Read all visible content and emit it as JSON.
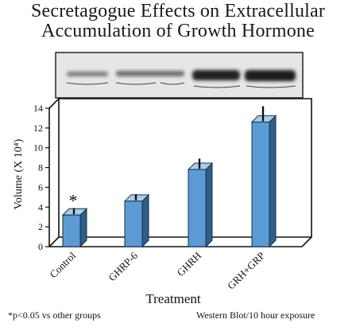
{
  "title_line1": "Secretagogue Effects on Extracellular",
  "title_line2": "Accumulation of Growth Hormone",
  "footnote_left": "*p<0.05 vs other groups",
  "footnote_right": "Western Blot/10 hour exposure",
  "chart_data": {
    "type": "bar",
    "title": "Secretagogue Effects on Extracellular Accumulation of Growth Hormone",
    "xlabel": "Treatment",
    "ylabel": "Volume (X 10⁴)",
    "ylim": [
      0,
      14
    ],
    "yticks": [
      "0",
      "2",
      "4",
      "6",
      "8",
      "10",
      "12",
      "14"
    ],
    "categories": [
      "Control",
      "GHRP-6",
      "GHRH",
      "GRH+GRP"
    ],
    "values": [
      3.2,
      4.6,
      7.8,
      12.6
    ],
    "errors": [
      0.7,
      0.7,
      1.1,
      1.6
    ],
    "annotations": [
      {
        "category": "Control",
        "text": "*"
      }
    ],
    "grid": false,
    "bar_color": "#5b9bd5",
    "bar_side_color": "#2e5f8a",
    "bar_top_color": "#a9cdee"
  }
}
